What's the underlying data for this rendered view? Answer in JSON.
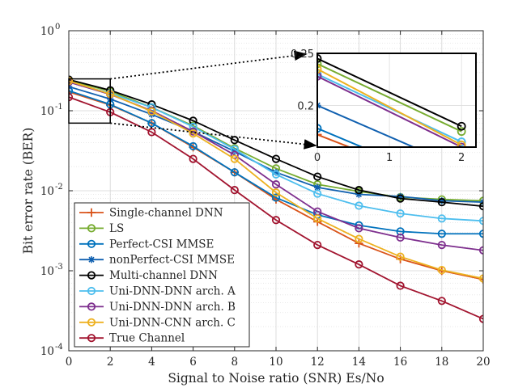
{
  "chart_data": {
    "type": "line",
    "yscale": "log",
    "xlabel": "Signal to Noise ratio (SNR) Es/No",
    "ylabel": "Bit error rate (BER)",
    "xlim": [
      0,
      20
    ],
    "ylim": [
      0.0001,
      1
    ],
    "x": [
      0,
      2,
      4,
      6,
      8,
      10,
      12,
      14,
      16,
      18,
      20
    ],
    "xticks": [
      "0",
      "2",
      "4",
      "6",
      "8",
      "10",
      "12",
      "14",
      "16",
      "18",
      "20"
    ],
    "yticks": [
      {
        "value": 0.0001,
        "label": "10",
        "exp": "-4"
      },
      {
        "value": 0.001,
        "label": "10",
        "exp": "-3"
      },
      {
        "value": 0.01,
        "label": "10",
        "exp": "-2"
      },
      {
        "value": 0.1,
        "label": "10",
        "exp": "-1"
      },
      {
        "value": 1,
        "label": "10",
        "exp": "0"
      }
    ],
    "grid": true,
    "legend_position": "bottom-left",
    "series": [
      {
        "name": "Single-channel DNN",
        "color": "#D95319",
        "marker": "plus",
        "values": [
          0.172,
          0.118,
          0.07,
          0.035,
          0.017,
          0.0078,
          0.0041,
          0.0022,
          0.0014,
          0.001,
          0.00078
        ]
      },
      {
        "name": "LS",
        "color": "#77AC30",
        "marker": "circle",
        "values": [
          0.24,
          0.175,
          0.11,
          0.065,
          0.034,
          0.019,
          0.012,
          0.0098,
          0.0083,
          0.0078,
          0.0075
        ]
      },
      {
        "name": "Perfect-CSI MMSE",
        "color": "#0072BD",
        "marker": "circle",
        "values": [
          0.178,
          0.12,
          0.07,
          0.036,
          0.017,
          0.0082,
          0.005,
          0.0037,
          0.0031,
          0.0029,
          0.0029
        ]
      },
      {
        "name": "nonPerfect-CSI MMSE",
        "color": "#1060B0",
        "marker": "asterisk",
        "values": [
          0.2,
          0.14,
          0.09,
          0.055,
          0.031,
          0.017,
          0.011,
          0.009,
          0.0085,
          0.0075,
          0.0072
        ]
      },
      {
        "name": "Multi-channel DNN",
        "color": "#000000",
        "marker": "circle",
        "values": [
          0.245,
          0.18,
          0.12,
          0.075,
          0.043,
          0.025,
          0.015,
          0.0102,
          0.008,
          0.0072,
          0.0064
        ]
      },
      {
        "name": "Uni-DNN-DNN arch. A",
        "color": "#4DBEEE",
        "marker": "circle",
        "values": [
          0.23,
          0.165,
          0.11,
          0.063,
          0.033,
          0.016,
          0.0092,
          0.0065,
          0.0052,
          0.0045,
          0.0042
        ]
      },
      {
        "name": "Uni-DNN-DNN arch. B",
        "color": "#7E2F8E",
        "marker": "circle",
        "values": [
          0.228,
          0.16,
          0.1,
          0.055,
          0.028,
          0.012,
          0.0055,
          0.0034,
          0.0026,
          0.0021,
          0.0018
        ]
      },
      {
        "name": "Uni-DNN-CNN arch. C",
        "color": "#EDB120",
        "marker": "circle",
        "values": [
          0.235,
          0.162,
          0.098,
          0.052,
          0.025,
          0.0095,
          0.0045,
          0.0025,
          0.0015,
          0.00102,
          0.0008
        ]
      },
      {
        "name": "True Channel",
        "color": "#A2142F",
        "marker": "circle",
        "values": [
          0.148,
          0.096,
          0.054,
          0.025,
          0.0102,
          0.0043,
          0.0021,
          0.0012,
          0.00065,
          0.00042,
          0.00025
        ]
      }
    ],
    "inset": {
      "xlim": [
        0,
        2.2
      ],
      "ylim": [
        0.16,
        0.25
      ],
      "xticks": [
        "0",
        "1",
        "2"
      ],
      "yticks": [
        {
          "value": 0.2,
          "label": "0.2"
        },
        {
          "value": 0.25,
          "label": "0.25"
        }
      ],
      "zoom_region": {
        "x": [
          0,
          2
        ],
        "y": [
          0.07,
          0.25
        ]
      }
    }
  }
}
